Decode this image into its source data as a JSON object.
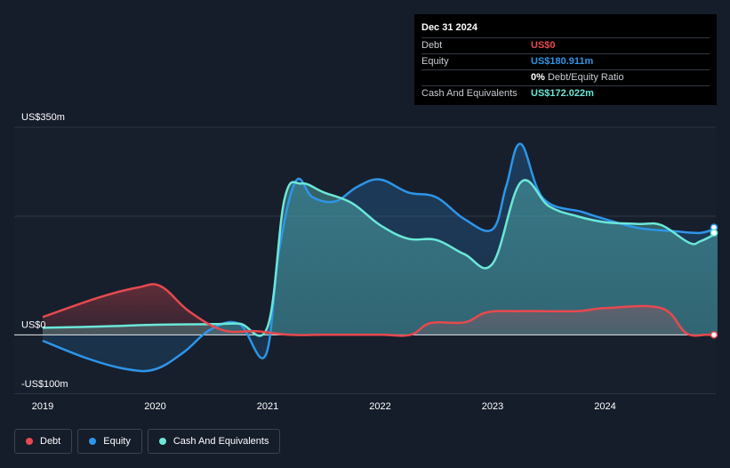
{
  "tooltip": {
    "date": "Dec 31 2024",
    "rows": [
      {
        "label": "Debt",
        "value": "US$0",
        "color": "#e8494e"
      },
      {
        "label": "Equity",
        "value": "US$180.911m",
        "color": "#2e95e8"
      },
      {
        "label": "",
        "value": "0%",
        "suffix": "Debt/Equity Ratio",
        "color": "#ffffff"
      },
      {
        "label": "Cash And Equivalents",
        "value": "US$172.022m",
        "color": "#6be7d8"
      }
    ]
  },
  "legend": {
    "items": [
      {
        "label": "Debt",
        "color": "#e8494e"
      },
      {
        "label": "Equity",
        "color": "#2e95e8"
      },
      {
        "label": "Cash And Equivalents",
        "color": "#6be7d8"
      }
    ]
  },
  "chart_data": {
    "type": "area",
    "ylim": [
      -100,
      350
    ],
    "xlim": [
      2019.0,
      2025.0
    ],
    "y_tick_labels": [
      {
        "value": 350,
        "label": "US$350m"
      },
      {
        "value": 0,
        "label": "US$0"
      },
      {
        "value": -100,
        "label": "-US$100m"
      }
    ],
    "x_ticks": [
      "2019",
      "2020",
      "2021",
      "2022",
      "2023",
      "2024"
    ],
    "x_tick_values": [
      2019,
      2020,
      2021,
      2022,
      2023,
      2024
    ],
    "grid": true,
    "legend_position": "bottom-left",
    "series": [
      {
        "name": "Debt",
        "color": "#e8494e",
        "x": [
          2019.0,
          2019.5,
          2019.85,
          2020.05,
          2020.3,
          2020.6,
          2020.9,
          2021.2,
          2021.5,
          2022.0,
          2022.27,
          2022.45,
          2022.75,
          2022.95,
          2023.25,
          2023.75,
          2024.0,
          2024.5,
          2024.72,
          2024.9,
          2025.0
        ],
        "y": [
          30,
          63,
          80,
          82,
          40,
          8,
          6,
          0,
          0,
          0,
          0,
          20,
          21,
          38,
          40,
          40,
          45,
          45,
          3,
          0,
          0
        ]
      },
      {
        "name": "Equity",
        "color": "#2e95e8",
        "x": [
          2019.0,
          2019.4,
          2019.75,
          2020.0,
          2020.25,
          2020.5,
          2020.75,
          2020.98,
          2021.1,
          2021.25,
          2021.4,
          2021.6,
          2021.8,
          2022.0,
          2022.25,
          2022.5,
          2022.75,
          2023.0,
          2023.12,
          2023.25,
          2023.45,
          2023.8,
          2024.0,
          2024.3,
          2024.6,
          2024.85,
          2025.0
        ],
        "y": [
          -10,
          -40,
          -58,
          -58,
          -30,
          10,
          18,
          -35,
          140,
          259,
          232,
          225,
          250,
          262,
          240,
          232,
          195,
          178,
          250,
          322,
          230,
          207,
          195,
          180,
          175,
          172,
          181
        ]
      },
      {
        "name": "Cash And Equivalents",
        "color": "#6be7d8",
        "x": [
          2019.0,
          2019.5,
          2020.0,
          2020.5,
          2020.75,
          2021.0,
          2021.15,
          2021.3,
          2021.5,
          2021.75,
          2022.0,
          2022.25,
          2022.5,
          2022.75,
          2023.0,
          2023.25,
          2023.5,
          2023.75,
          2024.0,
          2024.3,
          2024.5,
          2024.75,
          2024.85,
          2025.0
        ],
        "y": [
          12,
          14,
          17,
          18,
          19,
          14,
          229,
          255,
          240,
          222,
          185,
          162,
          160,
          136,
          120,
          257,
          217,
          200,
          190,
          187,
          185,
          155,
          158,
          172
        ]
      }
    ]
  }
}
